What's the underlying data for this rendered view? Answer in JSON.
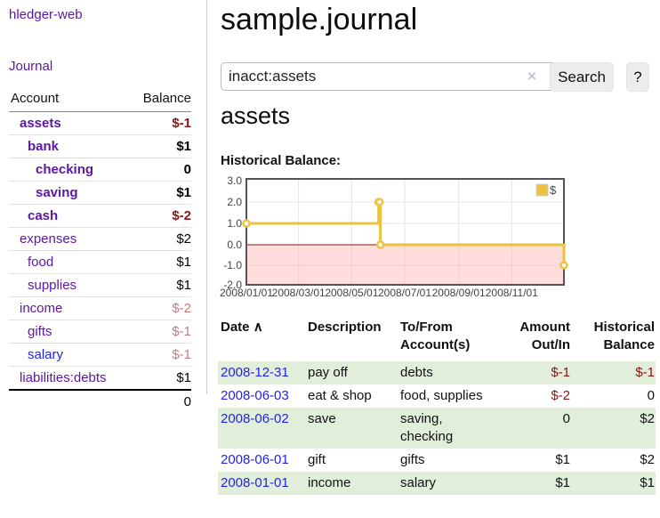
{
  "app": {
    "brand": "hledger-web",
    "nav_journal": "Journal"
  },
  "sidebar": {
    "headers": {
      "account": "Account",
      "balance": "Balance"
    },
    "accounts": [
      {
        "name": "assets",
        "level": 1,
        "bold": true,
        "balance": "$-1",
        "balance_style": "neg-strong",
        "link_style": "visited"
      },
      {
        "name": "bank",
        "level": 2,
        "bold": true,
        "balance": "$1",
        "balance_style": "pos",
        "link_style": "visited"
      },
      {
        "name": "checking",
        "level": 3,
        "bold": true,
        "balance": "0",
        "balance_style": "pos",
        "link_style": "visited"
      },
      {
        "name": "saving",
        "level": 3,
        "bold": true,
        "balance": "$1",
        "balance_style": "pos",
        "link_style": "visited"
      },
      {
        "name": "cash",
        "level": 2,
        "bold": true,
        "balance": "$-2",
        "balance_style": "neg-strong",
        "link_style": "visited"
      },
      {
        "name": "expenses",
        "level": 1,
        "bold": false,
        "balance": "$2",
        "balance_style": "pos",
        "link_style": "visited"
      },
      {
        "name": "food",
        "level": 2,
        "bold": false,
        "balance": "$1",
        "balance_style": "pos",
        "link_style": "visited"
      },
      {
        "name": "supplies",
        "level": 2,
        "bold": false,
        "balance": "$1",
        "balance_style": "pos",
        "link_style": "visited"
      },
      {
        "name": "income",
        "level": 1,
        "bold": false,
        "balance": "$-2",
        "balance_style": "neg-soft",
        "link_style": "visited"
      },
      {
        "name": "gifts",
        "level": 2,
        "bold": false,
        "balance": "$-1",
        "balance_style": "neg-soft",
        "link_style": "visited"
      },
      {
        "name": "salary",
        "level": 2,
        "bold": false,
        "balance": "$-1",
        "balance_style": "neg-soft",
        "link_style": "new"
      },
      {
        "name": "liabilities:debts",
        "level": 1,
        "bold": false,
        "balance": "$1",
        "balance_style": "pos",
        "link_style": "visited"
      }
    ],
    "total": "0"
  },
  "main": {
    "title": "sample.journal",
    "search": {
      "value": "inacct:assets",
      "clear_icon": "×",
      "button": "Search",
      "help": "?"
    },
    "account_title": "assets",
    "chart_label": "Historical Balance:"
  },
  "chart_data": {
    "type": "line",
    "interpolation": "step",
    "title": "Historical Balance",
    "series": [
      {
        "name": "$",
        "color": "#EDC240",
        "points": [
          [
            "2008-01-01",
            1
          ],
          [
            "2008-06-01",
            2
          ],
          [
            "2008-06-02",
            2
          ],
          [
            "2008-06-03",
            0
          ],
          [
            "2008-12-31",
            -1
          ]
        ]
      }
    ],
    "ylim": [
      -2.0,
      3.0
    ],
    "yticks": [
      "3.0",
      "2.0",
      "1.0",
      "0.0",
      "-1.0",
      "-2.0"
    ],
    "ytick_values": [
      3,
      2,
      1,
      0,
      -1,
      -2
    ],
    "xticks": [
      "2008/01/01",
      "2008/03/01",
      "2008/05/01",
      "2008/07/01",
      "2008/09/01",
      "2008/11/01"
    ],
    "grid": true,
    "legend_position": "top-right",
    "negative_region_color": "#ffb4b4",
    "zero_line_color": "#8b1515",
    "border_color": "#545454"
  },
  "register": {
    "headers": {
      "date": "Date",
      "date_sort_icon": "∧",
      "description": "Description",
      "account": "To/From\nAccount(s)",
      "amount": "Amount\nOut/In",
      "balance": "Historical\nBalance"
    },
    "rows": [
      {
        "date": "2008-12-31",
        "description": "pay off",
        "accounts": "debts",
        "amount": "$-1",
        "amount_neg": true,
        "balance": "$-1",
        "balance_neg": true,
        "striped": true
      },
      {
        "date": "2008-06-03",
        "description": "eat & shop",
        "accounts": "food, supplies",
        "amount": "$-2",
        "amount_neg": true,
        "balance": "0",
        "balance_neg": false,
        "striped": false
      },
      {
        "date": "2008-06-02",
        "description": "save",
        "accounts": "saving, checking",
        "amount": "0",
        "amount_neg": false,
        "balance": "$2",
        "balance_neg": false,
        "striped": true
      },
      {
        "date": "2008-06-01",
        "description": "gift",
        "accounts": "gifts",
        "amount": "$1",
        "amount_neg": false,
        "balance": "$2",
        "balance_neg": false,
        "striped": false
      },
      {
        "date": "2008-01-01",
        "description": "income",
        "accounts": "salary",
        "amount": "$1",
        "amount_neg": false,
        "balance": "$1",
        "balance_neg": false,
        "striped": true
      }
    ]
  }
}
